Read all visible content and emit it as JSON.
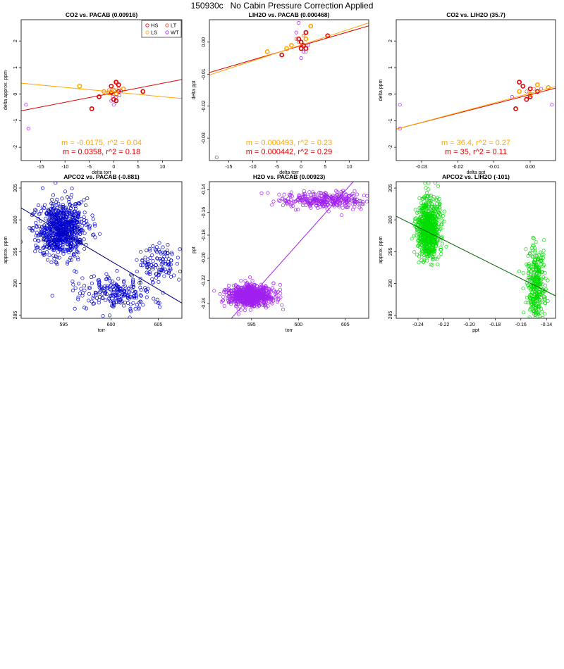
{
  "title": "150930c   No Cabin Pressure Correction Applied",
  "colors": {
    "HS": "#dd0000",
    "LS": "#ffa500",
    "LT": "#e84020",
    "WT": "#a020f0",
    "blue": "#0000cc",
    "navy": "#000080",
    "purple": "#a020f0",
    "green": "#00dd00",
    "darkgreen": "#006400"
  },
  "chart_data": [
    {
      "id": "p1",
      "type": "scatter",
      "title": "CO2 vs. PACAB (0.00916)",
      "xlabel": "delta torr",
      "ylabel": "delta approx. ppm",
      "xlim": [
        -19,
        14
      ],
      "ylim": [
        -2.5,
        2.8
      ],
      "xticks": [
        -15,
        -10,
        -5,
        0,
        5,
        10
      ],
      "yticks": [
        -2,
        -1,
        0,
        1,
        2
      ],
      "legend": {
        "position": "top-right",
        "entries": [
          {
            "label": "HS",
            "color": "#dd0000"
          },
          {
            "label": "LT",
            "color": "#e84020"
          },
          {
            "label": "LS",
            "color": "#ffa500"
          },
          {
            "label": "WT",
            "color": "#a020f0"
          }
        ]
      },
      "series": [
        {
          "name": "HS",
          "color": "#dd0000",
          "bold": true,
          "points": [
            [
              -4.5,
              -0.55
            ],
            [
              -3,
              -0.1
            ],
            [
              0.5,
              0.45
            ],
            [
              1,
              0.35
            ],
            [
              -0.5,
              0.05
            ],
            [
              0,
              -0.2
            ],
            [
              6,
              0.1
            ],
            [
              1,
              0.1
            ],
            [
              0.5,
              -0.25
            ],
            [
              -0.5,
              0.3
            ]
          ]
        },
        {
          "name": "LT",
          "color": "#e84020",
          "bold": false,
          "points": [
            [
              0.2,
              0.1
            ],
            [
              1,
              0.2
            ],
            [
              -0.2,
              -0.1
            ],
            [
              0.6,
              0.4
            ],
            [
              -1,
              0.15
            ],
            [
              1.2,
              -0.05
            ]
          ]
        },
        {
          "name": "LS",
          "color": "#ffa500",
          "bold": true,
          "points": [
            [
              -7,
              0.3
            ],
            [
              -2,
              0.1
            ],
            [
              2,
              0.2
            ],
            [
              0.5,
              0
            ],
            [
              0,
              0.15
            ],
            [
              -1,
              0.05
            ]
          ]
        },
        {
          "name": "WT",
          "color": "#a020f0",
          "bold": false,
          "points": [
            [
              -17.5,
              -1.3
            ],
            [
              -18,
              -0.4
            ],
            [
              0,
              -0.4
            ],
            [
              0.5,
              -0.1
            ],
            [
              1.5,
              0.1
            ],
            [
              -0.5,
              -0.25
            ]
          ]
        }
      ],
      "fits": [
        {
          "color": "#dd0000",
          "slope": 0.0358,
          "intercept": 0.05
        },
        {
          "color": "#ffa500",
          "slope": -0.0175,
          "intercept": 0.08
        }
      ],
      "annotations": [
        {
          "text": "m = -0.0175, r^2 = 0.04",
          "color": "#ffa500"
        },
        {
          "text": "m = 0.0358, r^2 = 0.18",
          "color": "#dd0000"
        }
      ]
    },
    {
      "id": "p2",
      "type": "scatter",
      "title": "LIH2O vs. PACAB (0.000468)",
      "xlabel": "delta torr",
      "ylabel": "delta ppt",
      "xlim": [
        -19,
        14
      ],
      "ylim": [
        -0.037,
        0.007
      ],
      "xticks": [
        -15,
        -10,
        -5,
        0,
        5,
        10
      ],
      "yticks": [
        -0.03,
        -0.02,
        -0.01,
        0.0
      ],
      "ytick_labels": [
        "-0.03",
        "-0.02",
        "-0.01",
        "0.00"
      ],
      "series": [
        {
          "name": "HS",
          "color": "#dd0000",
          "bold": true,
          "points": [
            [
              -4,
              -0.004
            ],
            [
              0,
              0.0
            ],
            [
              1,
              0.003
            ],
            [
              5.5,
              0.002
            ],
            [
              0,
              -0.002
            ],
            [
              1,
              -0.002
            ],
            [
              -0.5,
              0.001
            ],
            [
              0.5,
              -0.001
            ]
          ]
        },
        {
          "name": "LT",
          "color": "#e84020",
          "bold": false,
          "points": [
            [
              -0.5,
              0.0
            ],
            [
              0.5,
              0.002
            ],
            [
              1,
              -0.003
            ],
            [
              -1,
              0.001
            ]
          ]
        },
        {
          "name": "LS",
          "color": "#ffa500",
          "bold": true,
          "points": [
            [
              -7,
              -0.003
            ],
            [
              -2,
              -0.001
            ],
            [
              2,
              0.005
            ],
            [
              -3,
              -0.002
            ],
            [
              1,
              0.001
            ]
          ]
        },
        {
          "name": "WT",
          "color": "#a020f0",
          "bold": false,
          "points": [
            [
              -17.5,
              -0.036
            ],
            [
              -0.5,
              0.006
            ],
            [
              0,
              -0.005
            ],
            [
              0.5,
              -0.003
            ],
            [
              1.5,
              -0.001
            ],
            [
              -1,
              0.003
            ]
          ]
        }
      ],
      "fits": [
        {
          "color": "#dd0000",
          "slope": 0.000442,
          "intercept": -0.0011
        },
        {
          "color": "#ffa500",
          "slope": 0.000493,
          "intercept": -0.0009
        }
      ],
      "annotations": [
        {
          "text": "m = 0.000493, r^2 = 0.23",
          "color": "#ffa500"
        },
        {
          "text": "m = 0.000442, r^2 = 0.29",
          "color": "#dd0000"
        }
      ]
    },
    {
      "id": "p3",
      "type": "scatter",
      "title": "CO2 vs. LIH2O (35.7)",
      "xlabel": "delta ppt",
      "ylabel": "delta ppm",
      "xlim": [
        -0.037,
        0.007
      ],
      "ylim": [
        -2.5,
        2.8
      ],
      "xticks": [
        -0.03,
        -0.02,
        -0.01,
        0.0
      ],
      "xtick_labels": [
        "-0.03",
        "-0.02",
        "-0.01",
        "0.00"
      ],
      "yticks": [
        -2,
        -1,
        0,
        1,
        2
      ],
      "series": [
        {
          "name": "HS",
          "color": "#dd0000",
          "bold": true,
          "points": [
            [
              -0.003,
              0.45
            ],
            [
              0,
              0.2
            ],
            [
              -0.004,
              -0.55
            ],
            [
              0.002,
              0.1
            ],
            [
              -0.001,
              -0.2
            ],
            [
              0,
              -0.1
            ],
            [
              -0.002,
              0.3
            ]
          ]
        },
        {
          "name": "LT",
          "color": "#e84020",
          "bold": false,
          "points": [
            [
              -0.001,
              0.1
            ],
            [
              0.001,
              0.2
            ],
            [
              0,
              -0.05
            ]
          ]
        },
        {
          "name": "LS",
          "color": "#ffa500",
          "bold": true,
          "points": [
            [
              0.005,
              0.25
            ],
            [
              -0.003,
              0.1
            ],
            [
              0.002,
              0.35
            ],
            [
              0,
              0
            ]
          ]
        },
        {
          "name": "WT",
          "color": "#a020f0",
          "bold": false,
          "points": [
            [
              -0.036,
              -1.3
            ],
            [
              -0.036,
              -0.4
            ],
            [
              0.006,
              -0.4
            ],
            [
              -0.005,
              -0.1
            ],
            [
              0.003,
              0.2
            ]
          ]
        }
      ],
      "fits": [
        {
          "color": "#dd0000",
          "slope": 35,
          "intercept": -0.02
        },
        {
          "color": "#ffa500",
          "slope": 36.4,
          "intercept": 0.03
        }
      ],
      "annotations": [
        {
          "text": "m = 36.4, r^2 = 0.27",
          "color": "#ffa500"
        },
        {
          "text": "m = 35, r^2 = 0.11",
          "color": "#dd0000"
        }
      ]
    },
    {
      "id": "p4",
      "type": "scatter",
      "title": "APCO2 vs. PACAB (-0.881)",
      "xlabel": "torr",
      "ylabel": "approx. ppm",
      "xlim": [
        590.5,
        607.5
      ],
      "ylim": [
        284.5,
        306
      ],
      "xticks": [
        595,
        600,
        605
      ],
      "yticks": [
        285,
        290,
        295,
        300,
        305
      ],
      "clusters": [
        {
          "color": "#0000cc",
          "n": 750,
          "cx": 594.8,
          "sx": 1.3,
          "cy": 298.5,
          "sy": 2.2
        },
        {
          "color": "#0000cc",
          "n": 220,
          "cx": 600.5,
          "sx": 2.0,
          "cy": 288.3,
          "sy": 1.3
        },
        {
          "color": "#0000cc",
          "n": 110,
          "cx": 605.0,
          "sx": 1.2,
          "cy": 293.3,
          "sy": 1.6
        }
      ],
      "fits": [
        {
          "color": "#000080",
          "slope": -0.881,
          "intercept": 822.1
        }
      ]
    },
    {
      "id": "p5",
      "type": "scatter",
      "title": "H2O vs. PACAB (0.00923)",
      "xlabel": "torr",
      "ylabel": "ppt",
      "xlim": [
        590.5,
        607.5
      ],
      "ylim": [
        -0.253,
        -0.133
      ],
      "xticks": [
        595,
        600,
        605
      ],
      "yticks": [
        -0.24,
        -0.22,
        -0.2,
        -0.18,
        -0.16,
        -0.14
      ],
      "ytick_labels": [
        "-0.24",
        "-0.22",
        "-0.20",
        "-0.18",
        "-0.16",
        "-0.14"
      ],
      "clusters": [
        {
          "color": "#a020f0",
          "n": 750,
          "cx": 594.8,
          "sx": 1.2,
          "cy": -0.233,
          "sy": 0.0045
        },
        {
          "color": "#a020f0",
          "n": 320,
          "cx": 602.8,
          "sx": 2.3,
          "cy": -0.149,
          "sy": 0.0035
        }
      ],
      "fits": [
        {
          "color": "#a020f0",
          "slope": 0.00923,
          "intercept": -5.725
        }
      ]
    },
    {
      "id": "p6",
      "type": "scatter",
      "title": "APCO2 vs. LIH2O (-101)",
      "xlabel": "ppt",
      "ylabel": "approx. ppm",
      "xlim": [
        -0.257,
        -0.133
      ],
      "ylim": [
        284.5,
        306
      ],
      "xticks": [
        -0.24,
        -0.22,
        -0.2,
        -0.18,
        -0.16,
        -0.14
      ],
      "xtick_labels": [
        "-0.24",
        "-0.22",
        "-0.20",
        "-0.18",
        "-0.16",
        "-0.14"
      ],
      "yticks": [
        285,
        290,
        295,
        300,
        305
      ],
      "clusters": [
        {
          "color": "#00dd00",
          "n": 750,
          "cx": -0.232,
          "sx": 0.0045,
          "cy": 298.5,
          "sy": 2.2
        },
        {
          "color": "#00dd00",
          "n": 320,
          "cx": -0.148,
          "sx": 0.0035,
          "cy": 289.8,
          "sy": 3.0
        }
      ],
      "fits": [
        {
          "color": "#006400",
          "slope": -101,
          "intercept": 274.6
        }
      ]
    }
  ]
}
